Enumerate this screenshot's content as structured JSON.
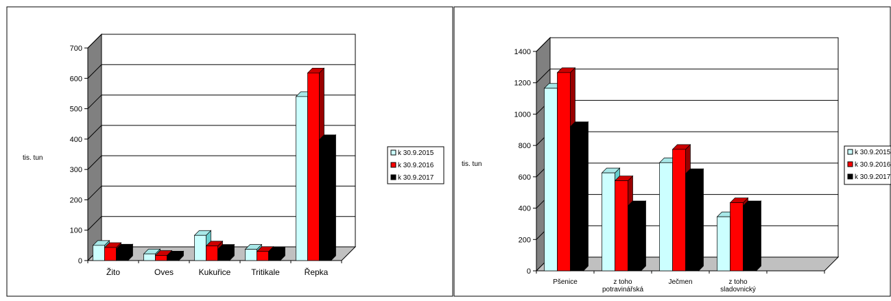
{
  "header": {
    "title_fragment": ""
  },
  "chart_data": [
    {
      "type": "bar",
      "ylabel": "tis. tun",
      "ylim": [
        0,
        700
      ],
      "yticks": [
        0,
        100,
        200,
        300,
        400,
        500,
        600,
        700
      ],
      "grid": true,
      "legend_position": "right",
      "categories": [
        "Žito",
        "Oves",
        "Kukuřice",
        "Tritikale",
        "Řepka"
      ],
      "series": [
        {
          "name": "k 30.9.2015",
          "color": "#ccffff",
          "values": [
            50,
            22,
            83,
            37,
            540
          ]
        },
        {
          "name": "k 30.9.2016",
          "color": "#ff0000",
          "values": [
            43,
            17,
            48,
            30,
            618
          ]
        },
        {
          "name": "k 30.9.2017",
          "color": "#000000",
          "values": [
            38,
            15,
            37,
            29,
            398
          ]
        }
      ]
    },
    {
      "type": "bar",
      "ylabel": "tis. tun",
      "ylim": [
        0,
        1400
      ],
      "yticks": [
        0,
        200,
        400,
        600,
        800,
        1000,
        1200,
        1400
      ],
      "grid": true,
      "legend_position": "right",
      "categories": [
        [
          "Pšenice"
        ],
        [
          "z toho",
          "potravinářská"
        ],
        [
          "Ječmen"
        ],
        [
          "z toho",
          "sladovnický"
        ],
        [
          ""
        ]
      ],
      "series": [
        {
          "name": "k 30.9.2015",
          "color": "#ccffff",
          "values": [
            1165,
            625,
            690,
            345,
            null
          ]
        },
        {
          "name": "k 30.9.2016",
          "color": "#ff0000",
          "values": [
            1265,
            575,
            775,
            435,
            null
          ]
        },
        {
          "name": "k 30.9.2017",
          "color": "#000000",
          "values": [
            920,
            415,
            620,
            415,
            null
          ]
        }
      ]
    }
  ]
}
